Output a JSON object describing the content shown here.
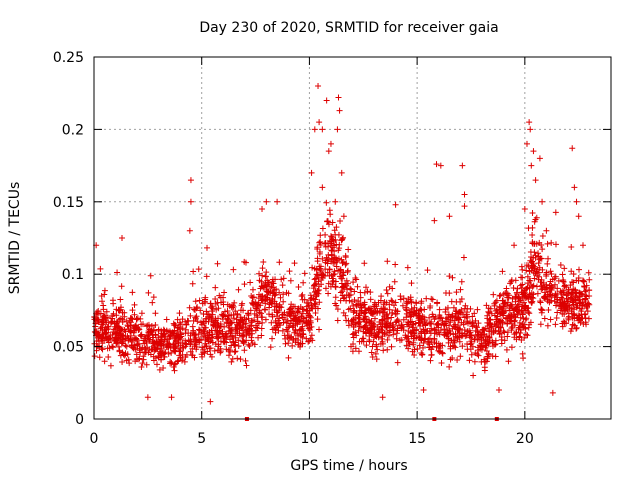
{
  "chart_data": {
    "type": "scatter",
    "title": "Day 230 of 2020, SRMTID for receiver gaia",
    "xlabel": "GPS time / hours",
    "ylabel": "SRMTID / TECUs",
    "xlim": [
      0,
      24
    ],
    "ylim": [
      0,
      0.25
    ],
    "x_ticks": [
      0,
      5,
      10,
      15,
      20
    ],
    "y_ticks": [
      0,
      0.05,
      0.1,
      0.15,
      0.2,
      0.25
    ],
    "x_tick_labels": [
      "0",
      "5",
      "10",
      "15",
      "20"
    ],
    "y_tick_labels": [
      "0",
      "0.05",
      "0.1",
      "0.15",
      "0.2",
      "0.25"
    ],
    "grid": true,
    "marker": "plus",
    "series_color": "#dd0000",
    "data_range_hours": [
      0,
      23
    ],
    "baseline_trend": [
      {
        "x": 0.0,
        "y": 0.062,
        "spread": 0.018
      },
      {
        "x": 1.0,
        "y": 0.062,
        "spread": 0.018
      },
      {
        "x": 2.0,
        "y": 0.055,
        "spread": 0.018
      },
      {
        "x": 3.0,
        "y": 0.05,
        "spread": 0.017
      },
      {
        "x": 4.0,
        "y": 0.055,
        "spread": 0.018
      },
      {
        "x": 5.0,
        "y": 0.062,
        "spread": 0.02
      },
      {
        "x": 6.0,
        "y": 0.065,
        "spread": 0.02
      },
      {
        "x": 7.0,
        "y": 0.06,
        "spread": 0.02
      },
      {
        "x": 8.0,
        "y": 0.085,
        "spread": 0.022
      },
      {
        "x": 9.0,
        "y": 0.065,
        "spread": 0.02
      },
      {
        "x": 10.0,
        "y": 0.07,
        "spread": 0.02
      },
      {
        "x": 10.8,
        "y": 0.12,
        "spread": 0.035
      },
      {
        "x": 11.5,
        "y": 0.1,
        "spread": 0.03
      },
      {
        "x": 12.0,
        "y": 0.07,
        "spread": 0.02
      },
      {
        "x": 13.0,
        "y": 0.065,
        "spread": 0.02
      },
      {
        "x": 14.0,
        "y": 0.07,
        "spread": 0.02
      },
      {
        "x": 15.0,
        "y": 0.065,
        "spread": 0.02
      },
      {
        "x": 16.0,
        "y": 0.06,
        "spread": 0.02
      },
      {
        "x": 17.0,
        "y": 0.065,
        "spread": 0.02
      },
      {
        "x": 18.0,
        "y": 0.055,
        "spread": 0.018
      },
      {
        "x": 19.0,
        "y": 0.07,
        "spread": 0.02
      },
      {
        "x": 20.0,
        "y": 0.075,
        "spread": 0.025
      },
      {
        "x": 20.5,
        "y": 0.11,
        "spread": 0.035
      },
      {
        "x": 21.0,
        "y": 0.09,
        "spread": 0.025
      },
      {
        "x": 22.0,
        "y": 0.08,
        "spread": 0.02
      },
      {
        "x": 23.0,
        "y": 0.08,
        "spread": 0.02
      }
    ],
    "highlighted_points": [
      {
        "x": 0.1,
        "y": 0.12
      },
      {
        "x": 1.3,
        "y": 0.125
      },
      {
        "x": 4.5,
        "y": 0.165
      },
      {
        "x": 4.5,
        "y": 0.15
      },
      {
        "x": 4.45,
        "y": 0.13
      },
      {
        "x": 7.8,
        "y": 0.145
      },
      {
        "x": 8.0,
        "y": 0.15
      },
      {
        "x": 8.5,
        "y": 0.15
      },
      {
        "x": 10.1,
        "y": 0.17
      },
      {
        "x": 10.25,
        "y": 0.2
      },
      {
        "x": 10.4,
        "y": 0.23
      },
      {
        "x": 10.45,
        "y": 0.205
      },
      {
        "x": 10.6,
        "y": 0.2
      },
      {
        "x": 10.8,
        "y": 0.22
      },
      {
        "x": 10.6,
        "y": 0.16
      },
      {
        "x": 10.9,
        "y": 0.185
      },
      {
        "x": 11.0,
        "y": 0.19
      },
      {
        "x": 11.2,
        "y": 0.15
      },
      {
        "x": 11.3,
        "y": 0.2
      },
      {
        "x": 11.35,
        "y": 0.222
      },
      {
        "x": 11.4,
        "y": 0.213
      },
      {
        "x": 11.5,
        "y": 0.17
      },
      {
        "x": 11.6,
        "y": 0.14
      },
      {
        "x": 14.0,
        "y": 0.148
      },
      {
        "x": 15.8,
        "y": 0.137
      },
      {
        "x": 15.9,
        "y": 0.176
      },
      {
        "x": 16.1,
        "y": 0.175
      },
      {
        "x": 16.5,
        "y": 0.14
      },
      {
        "x": 17.1,
        "y": 0.175
      },
      {
        "x": 17.2,
        "y": 0.155
      },
      {
        "x": 17.2,
        "y": 0.147
      },
      {
        "x": 19.5,
        "y": 0.12
      },
      {
        "x": 20.0,
        "y": 0.145
      },
      {
        "x": 20.1,
        "y": 0.19
      },
      {
        "x": 20.2,
        "y": 0.205
      },
      {
        "x": 20.25,
        "y": 0.2
      },
      {
        "x": 20.3,
        "y": 0.175
      },
      {
        "x": 20.4,
        "y": 0.185
      },
      {
        "x": 20.5,
        "y": 0.165
      },
      {
        "x": 20.7,
        "y": 0.18
      },
      {
        "x": 20.8,
        "y": 0.15
      },
      {
        "x": 21.0,
        "y": 0.13
      },
      {
        "x": 22.2,
        "y": 0.187
      },
      {
        "x": 22.3,
        "y": 0.16
      },
      {
        "x": 22.4,
        "y": 0.15
      },
      {
        "x": 22.5,
        "y": 0.14
      },
      {
        "x": 22.7,
        "y": 0.12
      },
      {
        "x": 2.5,
        "y": 0.015
      },
      {
        "x": 3.6,
        "y": 0.015
      },
      {
        "x": 5.4,
        "y": 0.012
      },
      {
        "x": 13.4,
        "y": 0.015
      },
      {
        "x": 15.3,
        "y": 0.02
      },
      {
        "x": 18.8,
        "y": 0.02
      },
      {
        "x": 21.3,
        "y": 0.018
      },
      {
        "x": 17.6,
        "y": 0.03
      },
      {
        "x": 19.9,
        "y": 0.045
      }
    ],
    "zero_markers": [
      {
        "x": 7.1,
        "y": 0
      },
      {
        "x": 15.8,
        "y": 0
      },
      {
        "x": 18.7,
        "y": 0
      }
    ]
  }
}
